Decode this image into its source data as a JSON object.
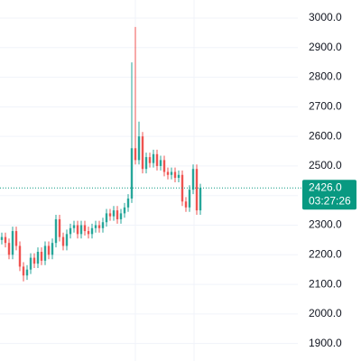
{
  "chart_data": {
    "type": "candlestick",
    "up_color": "#26a69a",
    "down_color": "#ef5350",
    "grid": true,
    "ylim": [
      1841,
      3061
    ],
    "yticks": [
      {
        "value": 1900,
        "label": "1900.0"
      },
      {
        "value": 2000,
        "label": "2000.0"
      },
      {
        "value": 2100,
        "label": "2100.0"
      },
      {
        "value": 2200,
        "label": "2200.0"
      },
      {
        "value": 2300,
        "label": "2300.0"
      },
      {
        "value": 2400,
        "label": "2400.0"
      },
      {
        "value": 2500,
        "label": "2500.0"
      },
      {
        "value": 2600,
        "label": "2600.0"
      },
      {
        "value": 2700,
        "label": "2700.0"
      },
      {
        "value": 2800,
        "label": "2800.0"
      },
      {
        "value": 2900,
        "label": "2900.0"
      },
      {
        "value": 3000,
        "label": "3000.0"
      }
    ],
    "open": [
      2250,
      2260,
      2240,
      2200,
      2280,
      2230,
      2160,
      2130,
      2150,
      2190,
      2170,
      2210,
      2180,
      2230,
      2200,
      2240,
      2320,
      2260,
      2230,
      2270,
      2290,
      2300,
      2270,
      2300,
      2280,
      2270,
      2290,
      2300,
      2290,
      2310,
      2340,
      2330,
      2350,
      2320,
      2340,
      2360,
      2390,
      2560,
      2520,
      2600,
      2490,
      2530,
      2510,
      2540,
      2500,
      2520,
      2480,
      2470,
      2480,
      2460,
      2470,
      2380,
      2360,
      2420,
      2490,
      2350
    ],
    "high": [
      2275,
      2275,
      2255,
      2295,
      2295,
      2245,
      2175,
      2165,
      2205,
      2205,
      2225,
      2225,
      2245,
      2245,
      2255,
      2335,
      2335,
      2275,
      2285,
      2305,
      2315,
      2315,
      2315,
      2315,
      2295,
      2305,
      2315,
      2315,
      2325,
      2355,
      2355,
      2365,
      2365,
      2355,
      2375,
      2405,
      2850,
      2970,
      2650,
      2615,
      2545,
      2545,
      2555,
      2555,
      2535,
      2535,
      2495,
      2495,
      2495,
      2485,
      2485,
      2395,
      2435,
      2505,
      2505,
      2440
    ],
    "low": [
      2235,
      2225,
      2185,
      2185,
      2215,
      2145,
      2110,
      2115,
      2135,
      2155,
      2155,
      2165,
      2165,
      2185,
      2185,
      2225,
      2245,
      2215,
      2215,
      2255,
      2275,
      2255,
      2255,
      2265,
      2255,
      2255,
      2275,
      2275,
      2275,
      2295,
      2315,
      2315,
      2305,
      2305,
      2325,
      2345,
      2375,
      2505,
      2505,
      2475,
      2475,
      2495,
      2495,
      2485,
      2485,
      2465,
      2455,
      2455,
      2445,
      2445,
      2365,
      2345,
      2345,
      2405,
      2335,
      2335
    ],
    "close": [
      2260,
      2240,
      2200,
      2280,
      2230,
      2160,
      2130,
      2150,
      2190,
      2170,
      2210,
      2180,
      2230,
      2200,
      2240,
      2320,
      2260,
      2230,
      2270,
      2290,
      2300,
      2270,
      2300,
      2280,
      2270,
      2290,
      2300,
      2290,
      2310,
      2340,
      2330,
      2350,
      2320,
      2340,
      2360,
      2390,
      2560,
      2520,
      2600,
      2490,
      2530,
      2510,
      2540,
      2500,
      2520,
      2480,
      2470,
      2480,
      2460,
      2470,
      2380,
      2360,
      2420,
      2490,
      2350,
      2426
    ],
    "last_price": {
      "value": 2426,
      "label": "2426.0"
    },
    "countdown": "03:27:26",
    "last_price_color": "#089981"
  }
}
